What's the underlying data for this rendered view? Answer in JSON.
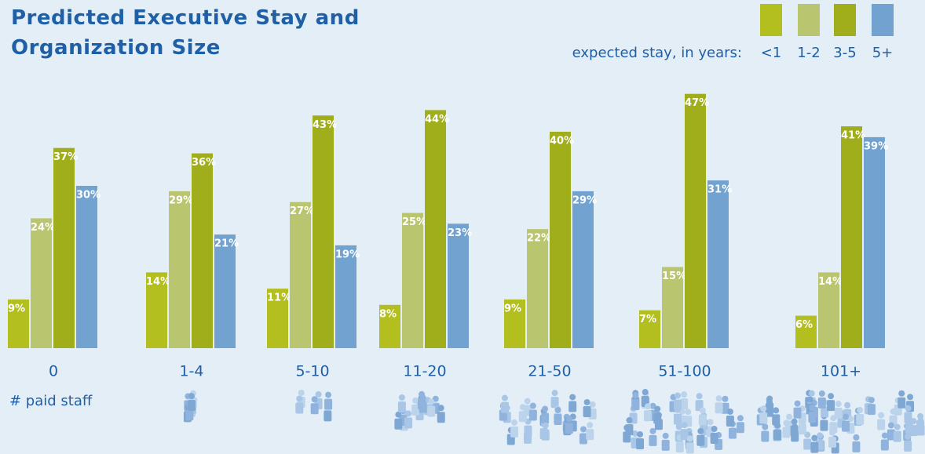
{
  "chart_data": {
    "type": "bar",
    "title": "Predicted Executive Stay and Organization Size",
    "legend_title": "expected stay, in years:",
    "x_label": "# paid staff",
    "categories": [
      "0",
      "1-4",
      "5-10",
      "11-20",
      "21-50",
      "51-100",
      "101+"
    ],
    "series": [
      {
        "name": "<1",
        "color": "#b3be1f",
        "values": [
          9,
          14,
          11,
          8,
          9,
          7,
          6
        ],
        "value_labels": [
          "9%",
          "14%",
          "11%",
          "8%",
          "9%",
          "7%",
          "6%"
        ]
      },
      {
        "name": "1-2",
        "color": "#b9c56f",
        "values": [
          24,
          29,
          27,
          25,
          22,
          15,
          14
        ],
        "value_labels": [
          "24%",
          "29%",
          "27%",
          "25%",
          "22%",
          "15%",
          "14%"
        ]
      },
      {
        "name": "3-5",
        "color": "#a0ae1c",
        "values": [
          37,
          36,
          43,
          44,
          40,
          47,
          41
        ],
        "value_labels": [
          "37%",
          "36%",
          "43%",
          "44%",
          "40%",
          "47%",
          "41%"
        ]
      },
      {
        "name": "5+",
        "color": "#72a2cf",
        "values": [
          30,
          21,
          19,
          23,
          29,
          31,
          39
        ],
        "value_labels": [
          "30%",
          "21%",
          "19%",
          "23%",
          "29%",
          "31%",
          "39%"
        ]
      }
    ]
  }
}
